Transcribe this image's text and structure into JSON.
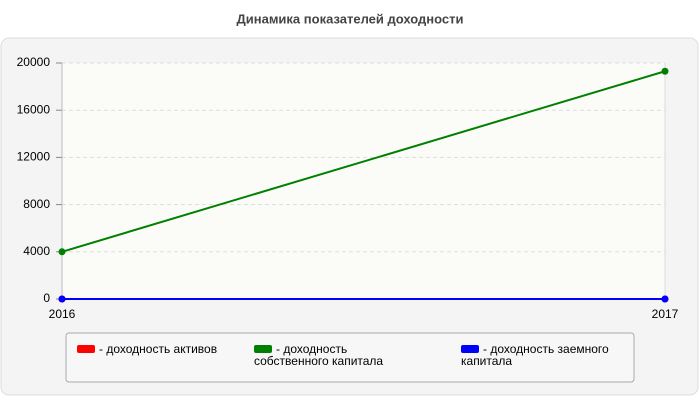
{
  "chart_data": {
    "type": "line",
    "title": "Динамика показателей доходности",
    "categories": [
      "2016",
      "2017"
    ],
    "series": [
      {
        "name": "- доходность активов",
        "color": "#ff0000",
        "values": [
          0,
          0
        ]
      },
      {
        "name": "- доходность собственного капитала",
        "color": "#008000",
        "values": [
          4000,
          19300
        ]
      },
      {
        "name": "- доходность заемного капитала",
        "color": "#0000ff",
        "values": [
          0,
          0
        ]
      }
    ],
    "ylim": [
      0,
      20000
    ],
    "yticks": [
      0,
      4000,
      8000,
      12000,
      16000,
      20000
    ],
    "grid": true
  }
}
